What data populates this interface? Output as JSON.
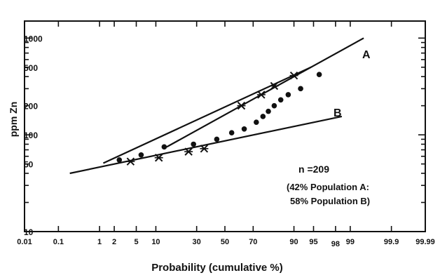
{
  "chart_data": {
    "type": "line",
    "title": "",
    "xlabel": "Probability (cumulative %)",
    "ylabel": "ppm Zn",
    "x_scale": "probability",
    "y_scale": "log",
    "xlim": [
      0.01,
      99.99
    ],
    "ylim": [
      10,
      1500
    ],
    "grid": false,
    "x_ticks": [
      0.01,
      0.1,
      1,
      2,
      5,
      10,
      30,
      50,
      70,
      90,
      95,
      98,
      99,
      99.9,
      99.99
    ],
    "x_tick_labels": [
      "0.01",
      "0.1",
      "1",
      "2",
      "5",
      "10",
      "30",
      "50",
      "70",
      "90",
      "95",
      "98",
      "99",
      "99.9",
      "99.99"
    ],
    "y_ticks": [
      10,
      50,
      100,
      200,
      500,
      1000
    ],
    "y_tick_labels": [
      "10",
      "50",
      "100",
      "200",
      "500",
      "1000"
    ],
    "series": [
      {
        "name": "A",
        "kind": "line",
        "x": [
          14,
          99.5
        ],
        "y": [
          75,
          1000
        ]
      },
      {
        "name": "B",
        "kind": "line",
        "x": [
          0.2,
          98.5
        ],
        "y": [
          40,
          155
        ]
      },
      {
        "kind": "line",
        "x": [
          1.2,
          94.5
        ],
        "y": [
          51,
          500
        ]
      },
      {
        "kind": "cross",
        "x": [
          4,
          11,
          25,
          35,
          62,
          75,
          82,
          90
        ],
        "y": [
          53,
          58,
          67,
          72,
          200,
          260,
          320,
          410
        ]
      },
      {
        "kind": "dot",
        "x": [
          2.5,
          6,
          13,
          28,
          44,
          55,
          64,
          72,
          76,
          79,
          82,
          85,
          88,
          92,
          96
        ],
        "y": [
          55,
          62,
          75,
          80,
          90,
          105,
          115,
          135,
          155,
          175,
          200,
          230,
          260,
          300,
          420
        ]
      }
    ],
    "annotations": [
      "n =209",
      "(42% Population A:",
      "58% Population B)"
    ],
    "line_labels": [
      "A",
      "B"
    ],
    "colors": {
      "ink": "#111111",
      "background": "#ffffff"
    }
  }
}
